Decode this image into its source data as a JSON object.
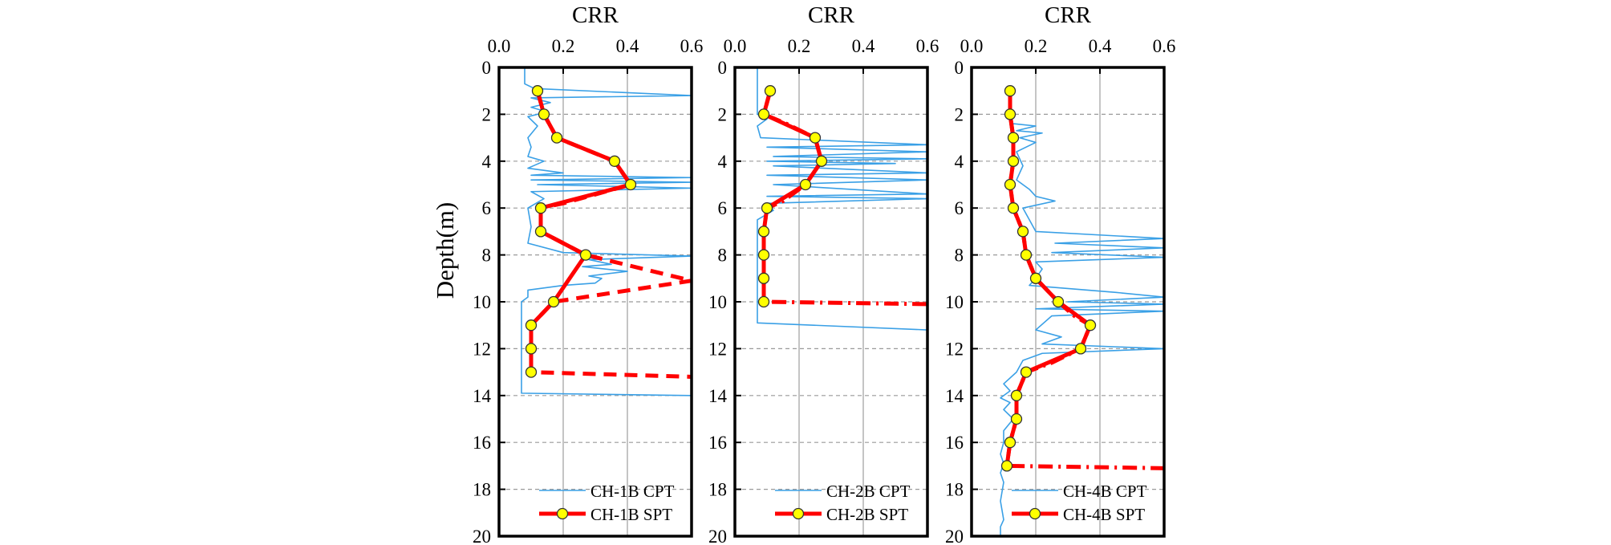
{
  "colors": {
    "cpt": "#3aa0e6",
    "spt_line": "#ff0000",
    "spt_marker_fill": "#ffff00",
    "spt_marker_edge": "#333333",
    "frame": "#000000"
  },
  "y_axis": {
    "label": "Depth(m)",
    "range": [
      0,
      20
    ],
    "ticks": [
      "0",
      "2",
      "4",
      "6",
      "8",
      "10",
      "12",
      "14",
      "16",
      "18",
      "20"
    ]
  },
  "chart_data": [
    {
      "type": "line",
      "title": "CRR",
      "x_ticks": [
        "0.0",
        "0.2",
        "0.4",
        "0.6"
      ],
      "xlim": [
        0,
        0.6
      ],
      "ylim": [
        20,
        0
      ],
      "grid": true,
      "legend_placement": "bottom-right",
      "series": [
        {
          "name": "CH-1B CPT",
          "style": "thin-solid",
          "points": [
            [
              0.08,
              0
            ],
            [
              0.08,
              0.7
            ],
            [
              0.11,
              0.9
            ],
            [
              0.6,
              1.2
            ],
            [
              0.1,
              1.3
            ],
            [
              0.16,
              1.5
            ],
            [
              0.1,
              1.7
            ],
            [
              0.15,
              1.9
            ],
            [
              0.09,
              2.1
            ],
            [
              0.12,
              2.5
            ],
            [
              0.09,
              3.0
            ],
            [
              0.1,
              3.4
            ],
            [
              0.09,
              3.8
            ],
            [
              0.14,
              4.0
            ],
            [
              0.09,
              4.3
            ],
            [
              0.2,
              4.5
            ],
            [
              0.1,
              4.6
            ],
            [
              0.6,
              4.7
            ],
            [
              0.1,
              4.8
            ],
            [
              0.6,
              4.9
            ],
            [
              0.12,
              5.0
            ],
            [
              0.6,
              5.15
            ],
            [
              0.1,
              5.3
            ],
            [
              0.14,
              5.6
            ],
            [
              0.09,
              6.0
            ],
            [
              0.1,
              6.8
            ],
            [
              0.09,
              7.5
            ],
            [
              0.2,
              7.9
            ],
            [
              0.6,
              8.05
            ],
            [
              0.28,
              8.2
            ],
            [
              0.35,
              8.4
            ],
            [
              0.26,
              8.5
            ],
            [
              0.4,
              8.7
            ],
            [
              0.28,
              8.9
            ],
            [
              0.32,
              9.0
            ],
            [
              0.3,
              9.2
            ],
            [
              0.2,
              9.3
            ],
            [
              0.09,
              9.5
            ],
            [
              0.09,
              9.8
            ],
            [
              0.07,
              10.0
            ],
            [
              0.07,
              13.9
            ],
            [
              0.6,
              14.0
            ]
          ]
        },
        {
          "name": "CH-1B SPT",
          "style": "thick-dashed-with-markers",
          "points": [
            [
              0.12,
              1
            ],
            [
              0.14,
              2
            ],
            [
              0.18,
              3
            ],
            [
              0.36,
              4
            ],
            [
              0.41,
              5
            ],
            [
              0.2,
              5.8
            ],
            [
              0.13,
              6
            ],
            [
              0.13,
              7
            ],
            [
              0.27,
              8
            ],
            [
              0.6,
              9.1
            ],
            [
              0.6,
              9.1
            ],
            [
              0.17,
              10
            ],
            [
              0.1,
              11
            ],
            [
              0.1,
              12
            ],
            [
              0.1,
              13
            ],
            [
              0.6,
              13.2
            ]
          ],
          "markers": [
            [
              0.12,
              1
            ],
            [
              0.14,
              2
            ],
            [
              0.18,
              3
            ],
            [
              0.36,
              4
            ],
            [
              0.41,
              5
            ],
            [
              0.13,
              6
            ],
            [
              0.13,
              7
            ],
            [
              0.27,
              8
            ],
            [
              0.17,
              10
            ],
            [
              0.1,
              11
            ],
            [
              0.1,
              12
            ],
            [
              0.1,
              13
            ]
          ]
        }
      ]
    },
    {
      "type": "line",
      "title": "CRR",
      "x_ticks": [
        "0.0",
        "0.2",
        "0.4",
        "0.6"
      ],
      "xlim": [
        0,
        0.6
      ],
      "ylim": [
        20,
        0
      ],
      "grid": true,
      "legend_placement": "bottom-right",
      "series": [
        {
          "name": "CH-2B CPT",
          "style": "thin-solid",
          "points": [
            [
              0.07,
              0
            ],
            [
              0.07,
              2.0
            ],
            [
              0.1,
              2.2
            ],
            [
              0.07,
              2.5
            ],
            [
              0.08,
              3.0
            ],
            [
              0.6,
              3.3
            ],
            [
              0.1,
              3.4
            ],
            [
              0.6,
              3.6
            ],
            [
              0.12,
              3.8
            ],
            [
              0.6,
              3.9
            ],
            [
              0.1,
              4.0
            ],
            [
              0.5,
              4.1
            ],
            [
              0.12,
              4.2
            ],
            [
              0.6,
              4.5
            ],
            [
              0.1,
              4.6
            ],
            [
              0.6,
              4.8
            ],
            [
              0.12,
              5.0
            ],
            [
              0.6,
              5.4
            ],
            [
              0.1,
              5.5
            ],
            [
              0.6,
              5.6
            ],
            [
              0.1,
              5.8
            ],
            [
              0.12,
              6.1
            ],
            [
              0.07,
              6.5
            ],
            [
              0.07,
              10.9
            ],
            [
              0.6,
              11.2
            ]
          ]
        },
        {
          "name": "CH-2B SPT",
          "style": "thick-dashdot-with-markers",
          "points": [
            [
              0.11,
              1
            ],
            [
              0.09,
              2
            ],
            [
              0.16,
              2.4
            ],
            [
              0.25,
              3
            ],
            [
              0.27,
              4
            ],
            [
              0.22,
              5
            ],
            [
              0.15,
              5.7
            ],
            [
              0.1,
              6
            ],
            [
              0.09,
              7
            ],
            [
              0.09,
              8
            ],
            [
              0.09,
              9
            ],
            [
              0.09,
              10
            ],
            [
              0.6,
              10.1
            ]
          ],
          "markers": [
            [
              0.11,
              1
            ],
            [
              0.09,
              2
            ],
            [
              0.25,
              3
            ],
            [
              0.27,
              4
            ],
            [
              0.22,
              5
            ],
            [
              0.1,
              6
            ],
            [
              0.09,
              7
            ],
            [
              0.09,
              8
            ],
            [
              0.09,
              9
            ],
            [
              0.09,
              10
            ]
          ]
        }
      ]
    },
    {
      "type": "line",
      "title": "CRR",
      "x_ticks": [
        "0.0",
        "0.2",
        "0.4",
        "0.6"
      ],
      "xlim": [
        0,
        0.6
      ],
      "ylim": [
        20,
        0
      ],
      "grid": true,
      "legend_placement": "bottom-right",
      "series": [
        {
          "name": "CH-4B CPT",
          "style": "thin-solid",
          "points": [
            [
              0.13,
              2.4
            ],
            [
              0.2,
              2.5
            ],
            [
              0.14,
              2.7
            ],
            [
              0.22,
              2.8
            ],
            [
              0.15,
              3.0
            ],
            [
              0.2,
              3.2
            ],
            [
              0.14,
              3.6
            ],
            [
              0.16,
              4.2
            ],
            [
              0.14,
              4.8
            ],
            [
              0.18,
              5.2
            ],
            [
              0.2,
              5.5
            ],
            [
              0.26,
              5.7
            ],
            [
              0.16,
              6.0
            ],
            [
              0.18,
              6.5
            ],
            [
              0.2,
              7.0
            ],
            [
              0.6,
              7.3
            ],
            [
              0.26,
              7.5
            ],
            [
              0.6,
              7.7
            ],
            [
              0.25,
              7.9
            ],
            [
              0.6,
              8.1
            ],
            [
              0.2,
              8.3
            ],
            [
              0.22,
              8.6
            ],
            [
              0.2,
              9.0
            ],
            [
              0.18,
              9.3
            ],
            [
              0.45,
              9.6
            ],
            [
              0.6,
              9.8
            ],
            [
              0.3,
              10.0
            ],
            [
              0.6,
              10.1
            ],
            [
              0.2,
              10.3
            ],
            [
              0.6,
              10.4
            ],
            [
              0.25,
              10.6
            ],
            [
              0.2,
              11.2
            ],
            [
              0.28,
              11.5
            ],
            [
              0.22,
              11.8
            ],
            [
              0.6,
              12.0
            ],
            [
              0.22,
              12.2
            ],
            [
              0.16,
              12.5
            ],
            [
              0.14,
              13.0
            ],
            [
              0.1,
              13.5
            ],
            [
              0.12,
              13.8
            ],
            [
              0.09,
              14.1
            ],
            [
              0.12,
              14.3
            ],
            [
              0.1,
              14.6
            ],
            [
              0.13,
              15.0
            ],
            [
              0.1,
              15.5
            ],
            [
              0.1,
              16.0
            ],
            [
              0.09,
              16.5
            ],
            [
              0.1,
              16.9
            ],
            [
              0.09,
              17.3
            ],
            [
              0.1,
              17.7
            ],
            [
              0.09,
              18.5
            ],
            [
              0.1,
              19.3
            ],
            [
              0.09,
              19.6
            ],
            [
              0.09,
              20
            ]
          ]
        },
        {
          "name": "CH-4B SPT",
          "style": "thick-dashdot-with-markers",
          "points": [
            [
              0.12,
              1
            ],
            [
              0.12,
              2
            ],
            [
              0.13,
              3
            ],
            [
              0.13,
              4
            ],
            [
              0.12,
              5
            ],
            [
              0.13,
              6
            ],
            [
              0.16,
              7
            ],
            [
              0.17,
              8
            ],
            [
              0.2,
              9
            ],
            [
              0.27,
              10
            ],
            [
              0.32,
              10.6
            ],
            [
              0.37,
              11
            ],
            [
              0.34,
              12
            ],
            [
              0.25,
              12.6
            ],
            [
              0.17,
              13
            ],
            [
              0.14,
              14
            ],
            [
              0.14,
              15
            ],
            [
              0.12,
              16
            ],
            [
              0.11,
              17
            ],
            [
              0.6,
              17.1
            ]
          ],
          "markers": [
            [
              0.12,
              1
            ],
            [
              0.12,
              2
            ],
            [
              0.13,
              3
            ],
            [
              0.13,
              4
            ],
            [
              0.12,
              5
            ],
            [
              0.13,
              6
            ],
            [
              0.16,
              7
            ],
            [
              0.17,
              8
            ],
            [
              0.2,
              9
            ],
            [
              0.27,
              10
            ],
            [
              0.37,
              11
            ],
            [
              0.34,
              12
            ],
            [
              0.17,
              13
            ],
            [
              0.14,
              14
            ],
            [
              0.14,
              15
            ],
            [
              0.12,
              16
            ],
            [
              0.11,
              17
            ]
          ]
        }
      ]
    }
  ]
}
